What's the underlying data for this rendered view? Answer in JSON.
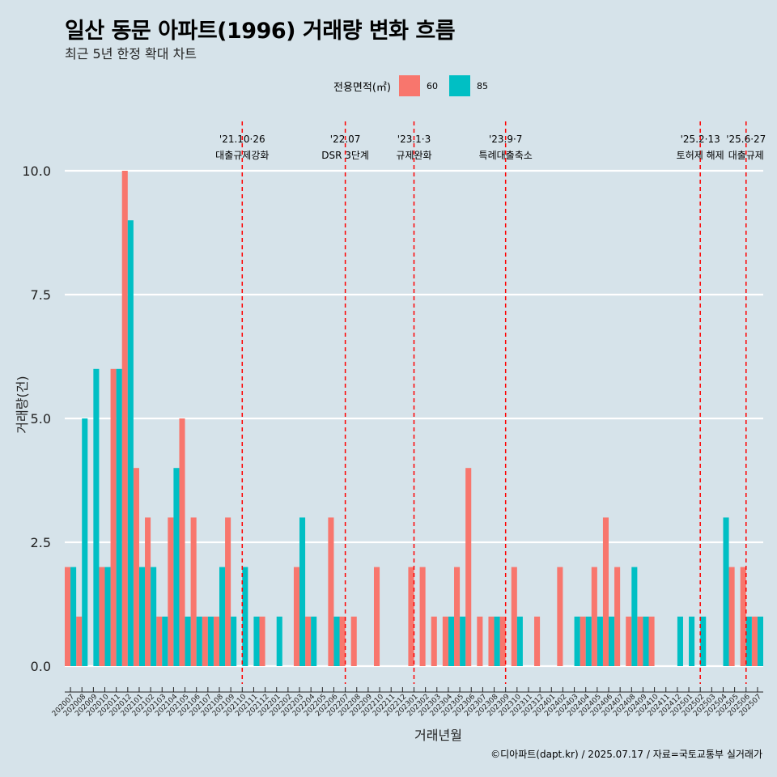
{
  "title": "일산 동문 아파트(1996) 거래량 변화 흐름",
  "subtitle": "최근 5년 한정 확대 차트",
  "footer": "©디아파트(dapt.kr) / 2025.07.17 / 자료=국토교통부 실거래가",
  "legend": {
    "title": "전용면적(㎡)",
    "items": [
      {
        "label": "60",
        "color": "#f8766d"
      },
      {
        "label": "85",
        "color": "#00bfc4"
      }
    ]
  },
  "chart_data": {
    "type": "bar",
    "xlabel": "거래년월",
    "ylabel": "거래량(건)",
    "ylim": [
      -0.5,
      10.5
    ],
    "yticks": [
      0,
      2.5,
      5,
      7.5,
      10
    ],
    "ytick_labels": [
      "0.0",
      "2.5",
      "5.0",
      "7.5",
      "10.0"
    ],
    "grid": true,
    "months": [
      "202007",
      "202008",
      "202009",
      "202010",
      "202011",
      "202012",
      "202101",
      "202102",
      "202103",
      "202104",
      "202105",
      "202106",
      "202107",
      "202108",
      "202109",
      "202110",
      "202111",
      "202112",
      "202201",
      "202202",
      "202203",
      "202204",
      "202205",
      "202206",
      "202207",
      "202208",
      "202209",
      "202210",
      "202211",
      "202212",
      "202301",
      "202302",
      "202303",
      "202304",
      "202305",
      "202306",
      "202307",
      "202308",
      "202309",
      "202310",
      "202311",
      "202312",
      "202401",
      "202402",
      "202403",
      "202404",
      "202405",
      "202406",
      "202407",
      "202408",
      "202409",
      "202410",
      "202411",
      "202412",
      "202501",
      "202502",
      "202503",
      "202504",
      "202505",
      "202506",
      "202507"
    ],
    "series": [
      {
        "name": "60",
        "color": "#f8766d",
        "values": [
          2,
          1,
          0,
          2,
          6,
          10,
          4,
          3,
          1,
          3,
          5,
          3,
          1,
          1,
          3,
          0,
          0,
          1,
          0,
          0,
          2,
          1,
          0,
          3,
          1,
          1,
          0,
          2,
          0,
          0,
          2,
          2,
          1,
          1,
          2,
          4,
          1,
          1,
          1,
          2,
          0,
          1,
          0,
          2,
          0,
          1,
          2,
          3,
          2,
          1,
          1,
          1,
          0,
          0,
          0,
          0,
          0,
          0,
          2,
          2,
          1
        ]
      },
      {
        "name": "85",
        "color": "#00bfc4",
        "values": [
          2,
          5,
          6,
          2,
          6,
          9,
          2,
          2,
          1,
          4,
          1,
          1,
          1,
          2,
          1,
          2,
          1,
          0,
          1,
          0,
          3,
          1,
          0,
          1,
          0,
          0,
          0,
          0,
          0,
          0,
          0,
          0,
          0,
          1,
          1,
          0,
          0,
          1,
          0,
          1,
          0,
          0,
          0,
          0,
          1,
          1,
          1,
          1,
          0,
          2,
          1,
          0,
          0,
          1,
          1,
          1,
          0,
          3,
          0,
          1,
          1
        ]
      }
    ],
    "annotations": [
      {
        "month": "202110",
        "date": "'21.10·26",
        "label": "대출규제강화"
      },
      {
        "month": "202207",
        "date": "'22.07",
        "label": "DSR 3단계"
      },
      {
        "month": "202301",
        "date": "'23.1·3",
        "label": "규제완화"
      },
      {
        "month": "202309",
        "date": "'23.9·7",
        "label": "특례대출축소"
      },
      {
        "month": "202502",
        "date": "'25.2·13",
        "label": "토허제 해제"
      },
      {
        "month": "202506",
        "date": "'25.6·27",
        "label": "대출규제"
      }
    ]
  }
}
